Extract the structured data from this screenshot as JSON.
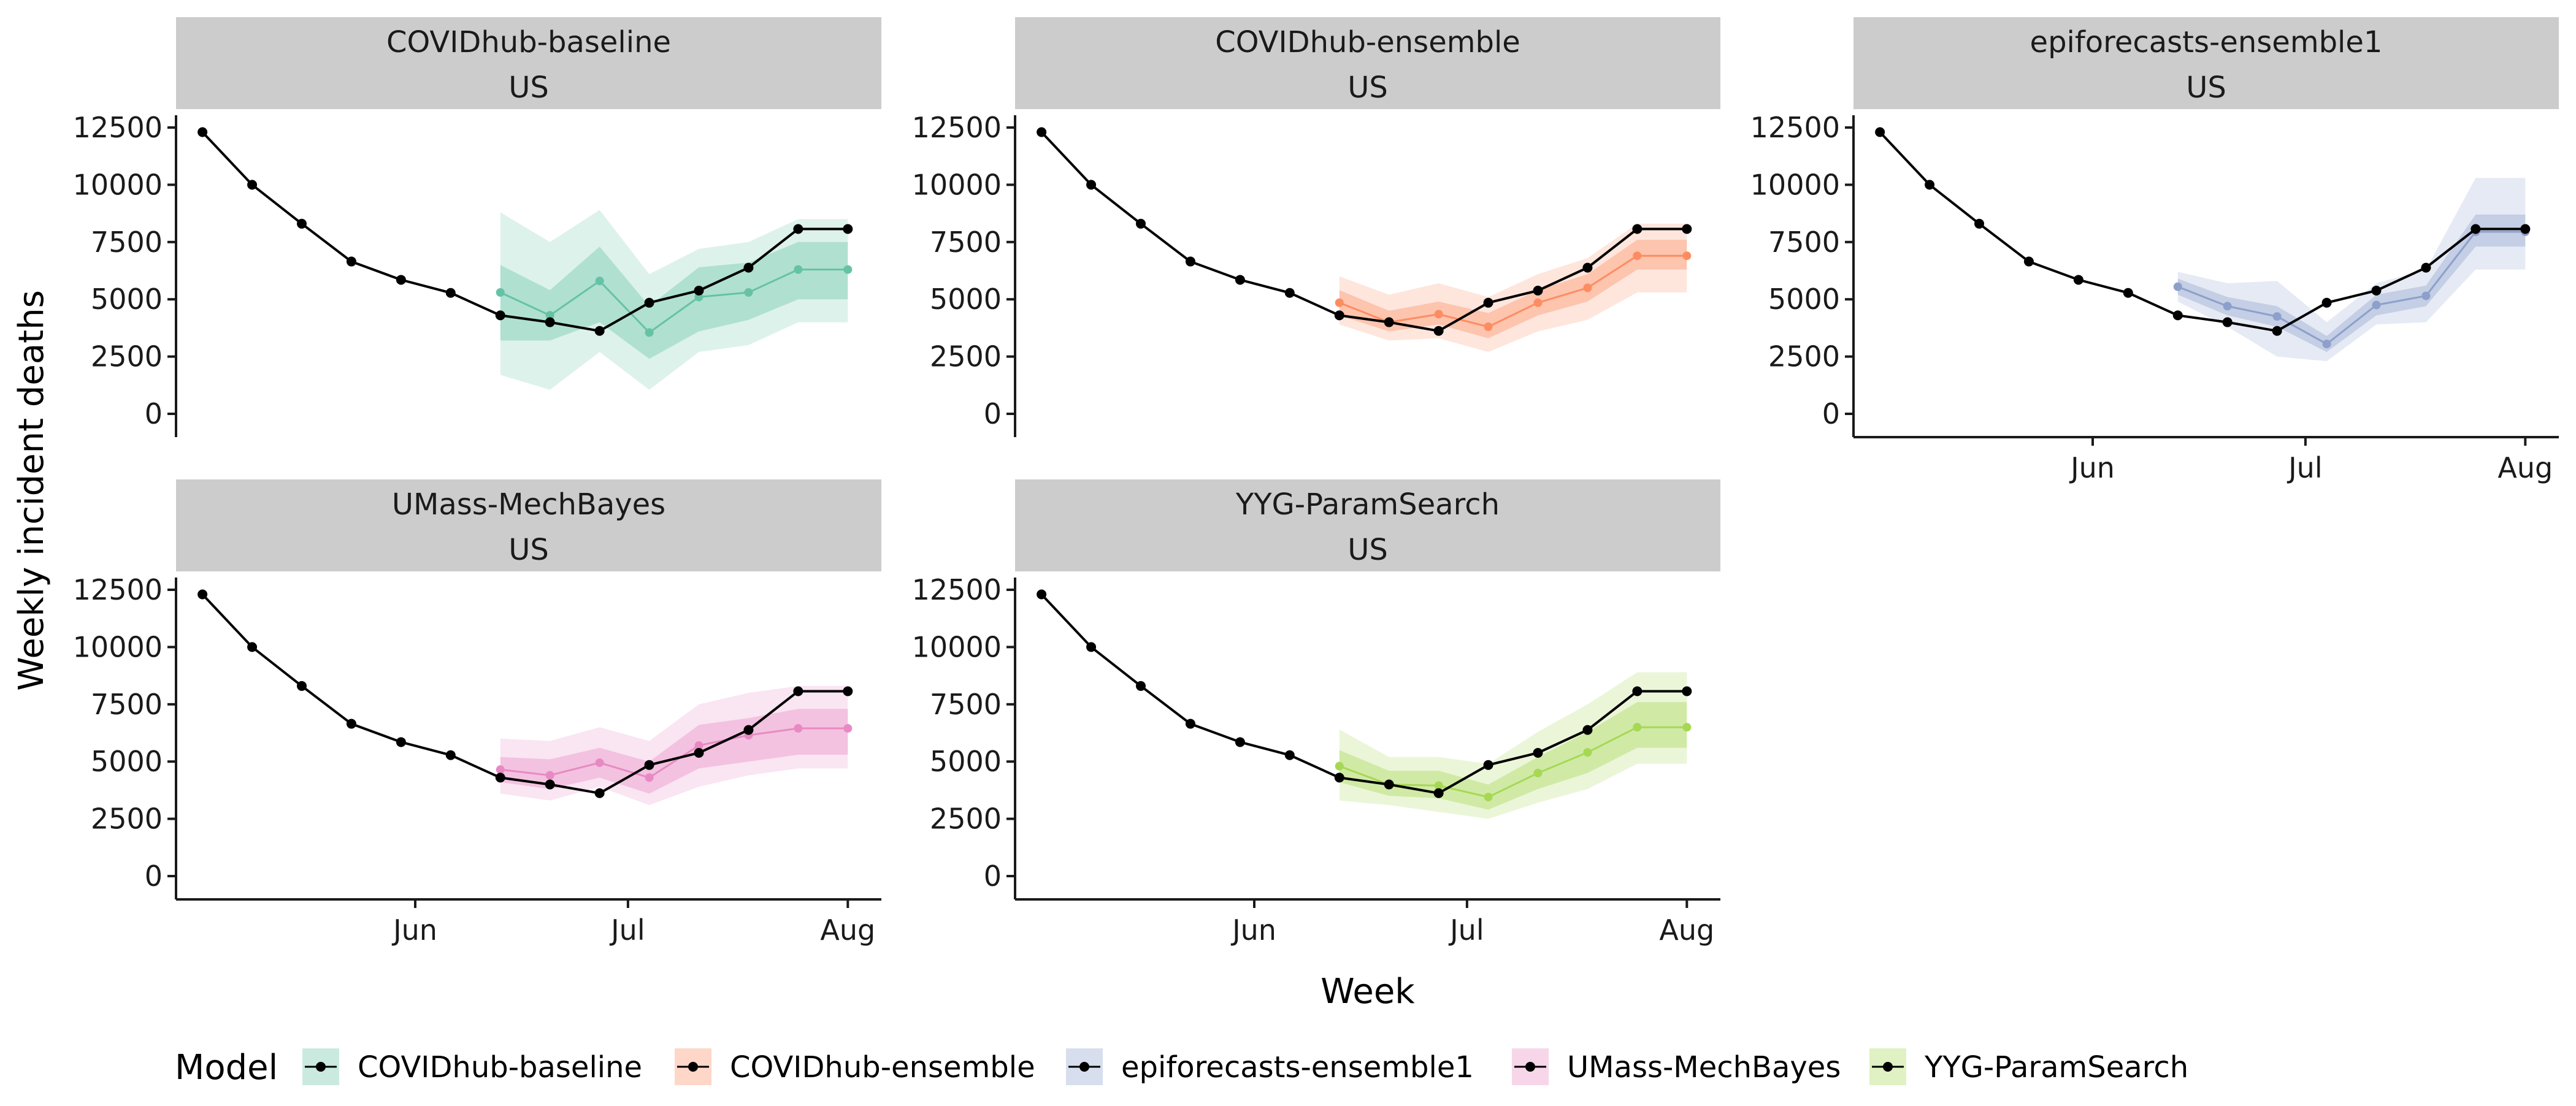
{
  "chart_data": {
    "type": "line",
    "xlabel": "Week",
    "ylabel": "Weekly incident deaths",
    "ylim": [
      0,
      12500
    ],
    "y_ticks": [
      0,
      2500,
      5000,
      7500,
      10000,
      12500
    ],
    "x_ticks": [
      {
        "label": "Jun",
        "date": "2020-06-01"
      },
      {
        "label": "Jul",
        "date": "2020-07-01"
      },
      {
        "label": "Aug",
        "date": "2020-08-01"
      }
    ],
    "x_range": [
      "2020-04-30",
      "2020-08-04"
    ],
    "observed": {
      "dates": [
        "2020-05-02",
        "2020-05-09",
        "2020-05-16",
        "2020-05-23",
        "2020-05-30",
        "2020-06-06",
        "2020-06-13",
        "2020-06-20",
        "2020-06-27",
        "2020-07-04",
        "2020-07-11",
        "2020-07-18",
        "2020-07-25",
        "2020-08-01"
      ],
      "values": [
        12300,
        10000,
        8300,
        6650,
        5850,
        5280,
        4300,
        4000,
        3620,
        4850,
        5380,
        6380,
        8070,
        8070
      ]
    },
    "facets": [
      {
        "model": "COVIDhub-baseline",
        "location": "US",
        "color": "#66c2a5",
        "forecast_dates": [
          "2020-06-13",
          "2020-06-20",
          "2020-06-27",
          "2020-07-04",
          "2020-07-11",
          "2020-07-18",
          "2020-07-25",
          "2020-08-01"
        ],
        "median": [
          5300,
          4300,
          5800,
          3550,
          5100,
          5300,
          6300,
          6300
        ],
        "inner_low": [
          3200,
          3200,
          4000,
          2400,
          3600,
          4100,
          5000,
          5000
        ],
        "inner_high": [
          6500,
          5400,
          7300,
          4700,
          6400,
          6600,
          7500,
          7500
        ],
        "outer_low": [
          1700,
          1050,
          2700,
          1050,
          2700,
          3000,
          4000,
          4000
        ],
        "outer_high": [
          8800,
          7500,
          8900,
          6100,
          7200,
          7500,
          8500,
          8500
        ]
      },
      {
        "model": "COVIDhub-ensemble",
        "location": "US",
        "color": "#fc8d62",
        "forecast_dates": [
          "2020-06-13",
          "2020-06-20",
          "2020-06-27",
          "2020-07-04",
          "2020-07-11",
          "2020-07-18",
          "2020-07-25",
          "2020-08-01"
        ],
        "median": [
          4850,
          4000,
          4350,
          3800,
          4850,
          5500,
          6900,
          6900
        ],
        "inner_low": [
          4300,
          3600,
          3900,
          3300,
          4300,
          4900,
          6300,
          6300
        ],
        "inner_high": [
          5400,
          4500,
          4900,
          4400,
          5400,
          6100,
          7600,
          7600
        ],
        "outer_low": [
          3900,
          3200,
          3300,
          2700,
          3600,
          4100,
          5300,
          5300
        ],
        "outer_high": [
          6000,
          5200,
          5700,
          5100,
          6100,
          6800,
          8300,
          8300
        ]
      },
      {
        "model": "epiforecasts-ensemble1",
        "location": "US",
        "color": "#8da0cb",
        "forecast_dates": [
          "2020-06-13",
          "2020-06-20",
          "2020-06-27",
          "2020-07-04",
          "2020-07-11",
          "2020-07-18",
          "2020-07-25",
          "2020-08-01"
        ],
        "median": [
          5550,
          4700,
          4250,
          3050,
          4750,
          5150,
          7950,
          7950
        ],
        "inner_low": [
          5200,
          4300,
          3800,
          2700,
          4300,
          4700,
          7300,
          7300
        ],
        "inner_high": [
          5900,
          5100,
          4700,
          3400,
          5200,
          5600,
          8700,
          8700
        ],
        "outer_low": [
          4900,
          3800,
          2500,
          2300,
          3900,
          4000,
          6300,
          6300
        ],
        "outer_high": [
          6200,
          5700,
          5800,
          4000,
          5700,
          6300,
          10300,
          10300
        ]
      },
      {
        "model": "UMass-MechBayes",
        "location": "US",
        "color": "#e78ac3",
        "forecast_dates": [
          "2020-06-13",
          "2020-06-20",
          "2020-06-27",
          "2020-07-04",
          "2020-07-11",
          "2020-07-18",
          "2020-07-25",
          "2020-08-01"
        ],
        "median": [
          4650,
          4400,
          4950,
          4300,
          5700,
          6150,
          6450,
          6450
        ],
        "inner_low": [
          4100,
          3800,
          4300,
          3600,
          4700,
          5000,
          5300,
          5300
        ],
        "inner_high": [
          5200,
          5100,
          5600,
          5000,
          6600,
          6900,
          7300,
          7300
        ],
        "outer_low": [
          3600,
          3300,
          3900,
          3100,
          3900,
          4400,
          4700,
          4700
        ],
        "outer_high": [
          6000,
          5900,
          6500,
          5900,
          7500,
          8000,
          8300,
          8300
        ]
      },
      {
        "model": "YYG-ParamSearch",
        "location": "US",
        "color": "#a6d854",
        "forecast_dates": [
          "2020-06-13",
          "2020-06-20",
          "2020-06-27",
          "2020-07-04",
          "2020-07-11",
          "2020-07-18",
          "2020-07-25",
          "2020-08-01"
        ],
        "median": [
          4800,
          4000,
          3950,
          3450,
          4500,
          5400,
          6500,
          6500
        ],
        "inner_low": [
          4100,
          3500,
          3400,
          2900,
          3800,
          4500,
          5600,
          5600
        ],
        "inner_high": [
          5500,
          4600,
          4600,
          4000,
          5200,
          6300,
          7600,
          7600
        ],
        "outer_low": [
          3300,
          3100,
          2800,
          2500,
          3200,
          3800,
          4900,
          4900
        ],
        "outer_high": [
          6400,
          5200,
          5200,
          4900,
          6300,
          7500,
          8900,
          8900
        ]
      }
    ],
    "legend": {
      "title": "Model",
      "position": "bottom",
      "items": [
        "COVIDhub-baseline",
        "COVIDhub-ensemble",
        "epiforecasts-ensemble1",
        "UMass-MechBayes",
        "YYG-ParamSearch"
      ]
    },
    "colors": {
      "observed": "#000000",
      "strip_background": "#cccccc",
      "axis": "#1a1a1a"
    },
    "grid": false
  }
}
